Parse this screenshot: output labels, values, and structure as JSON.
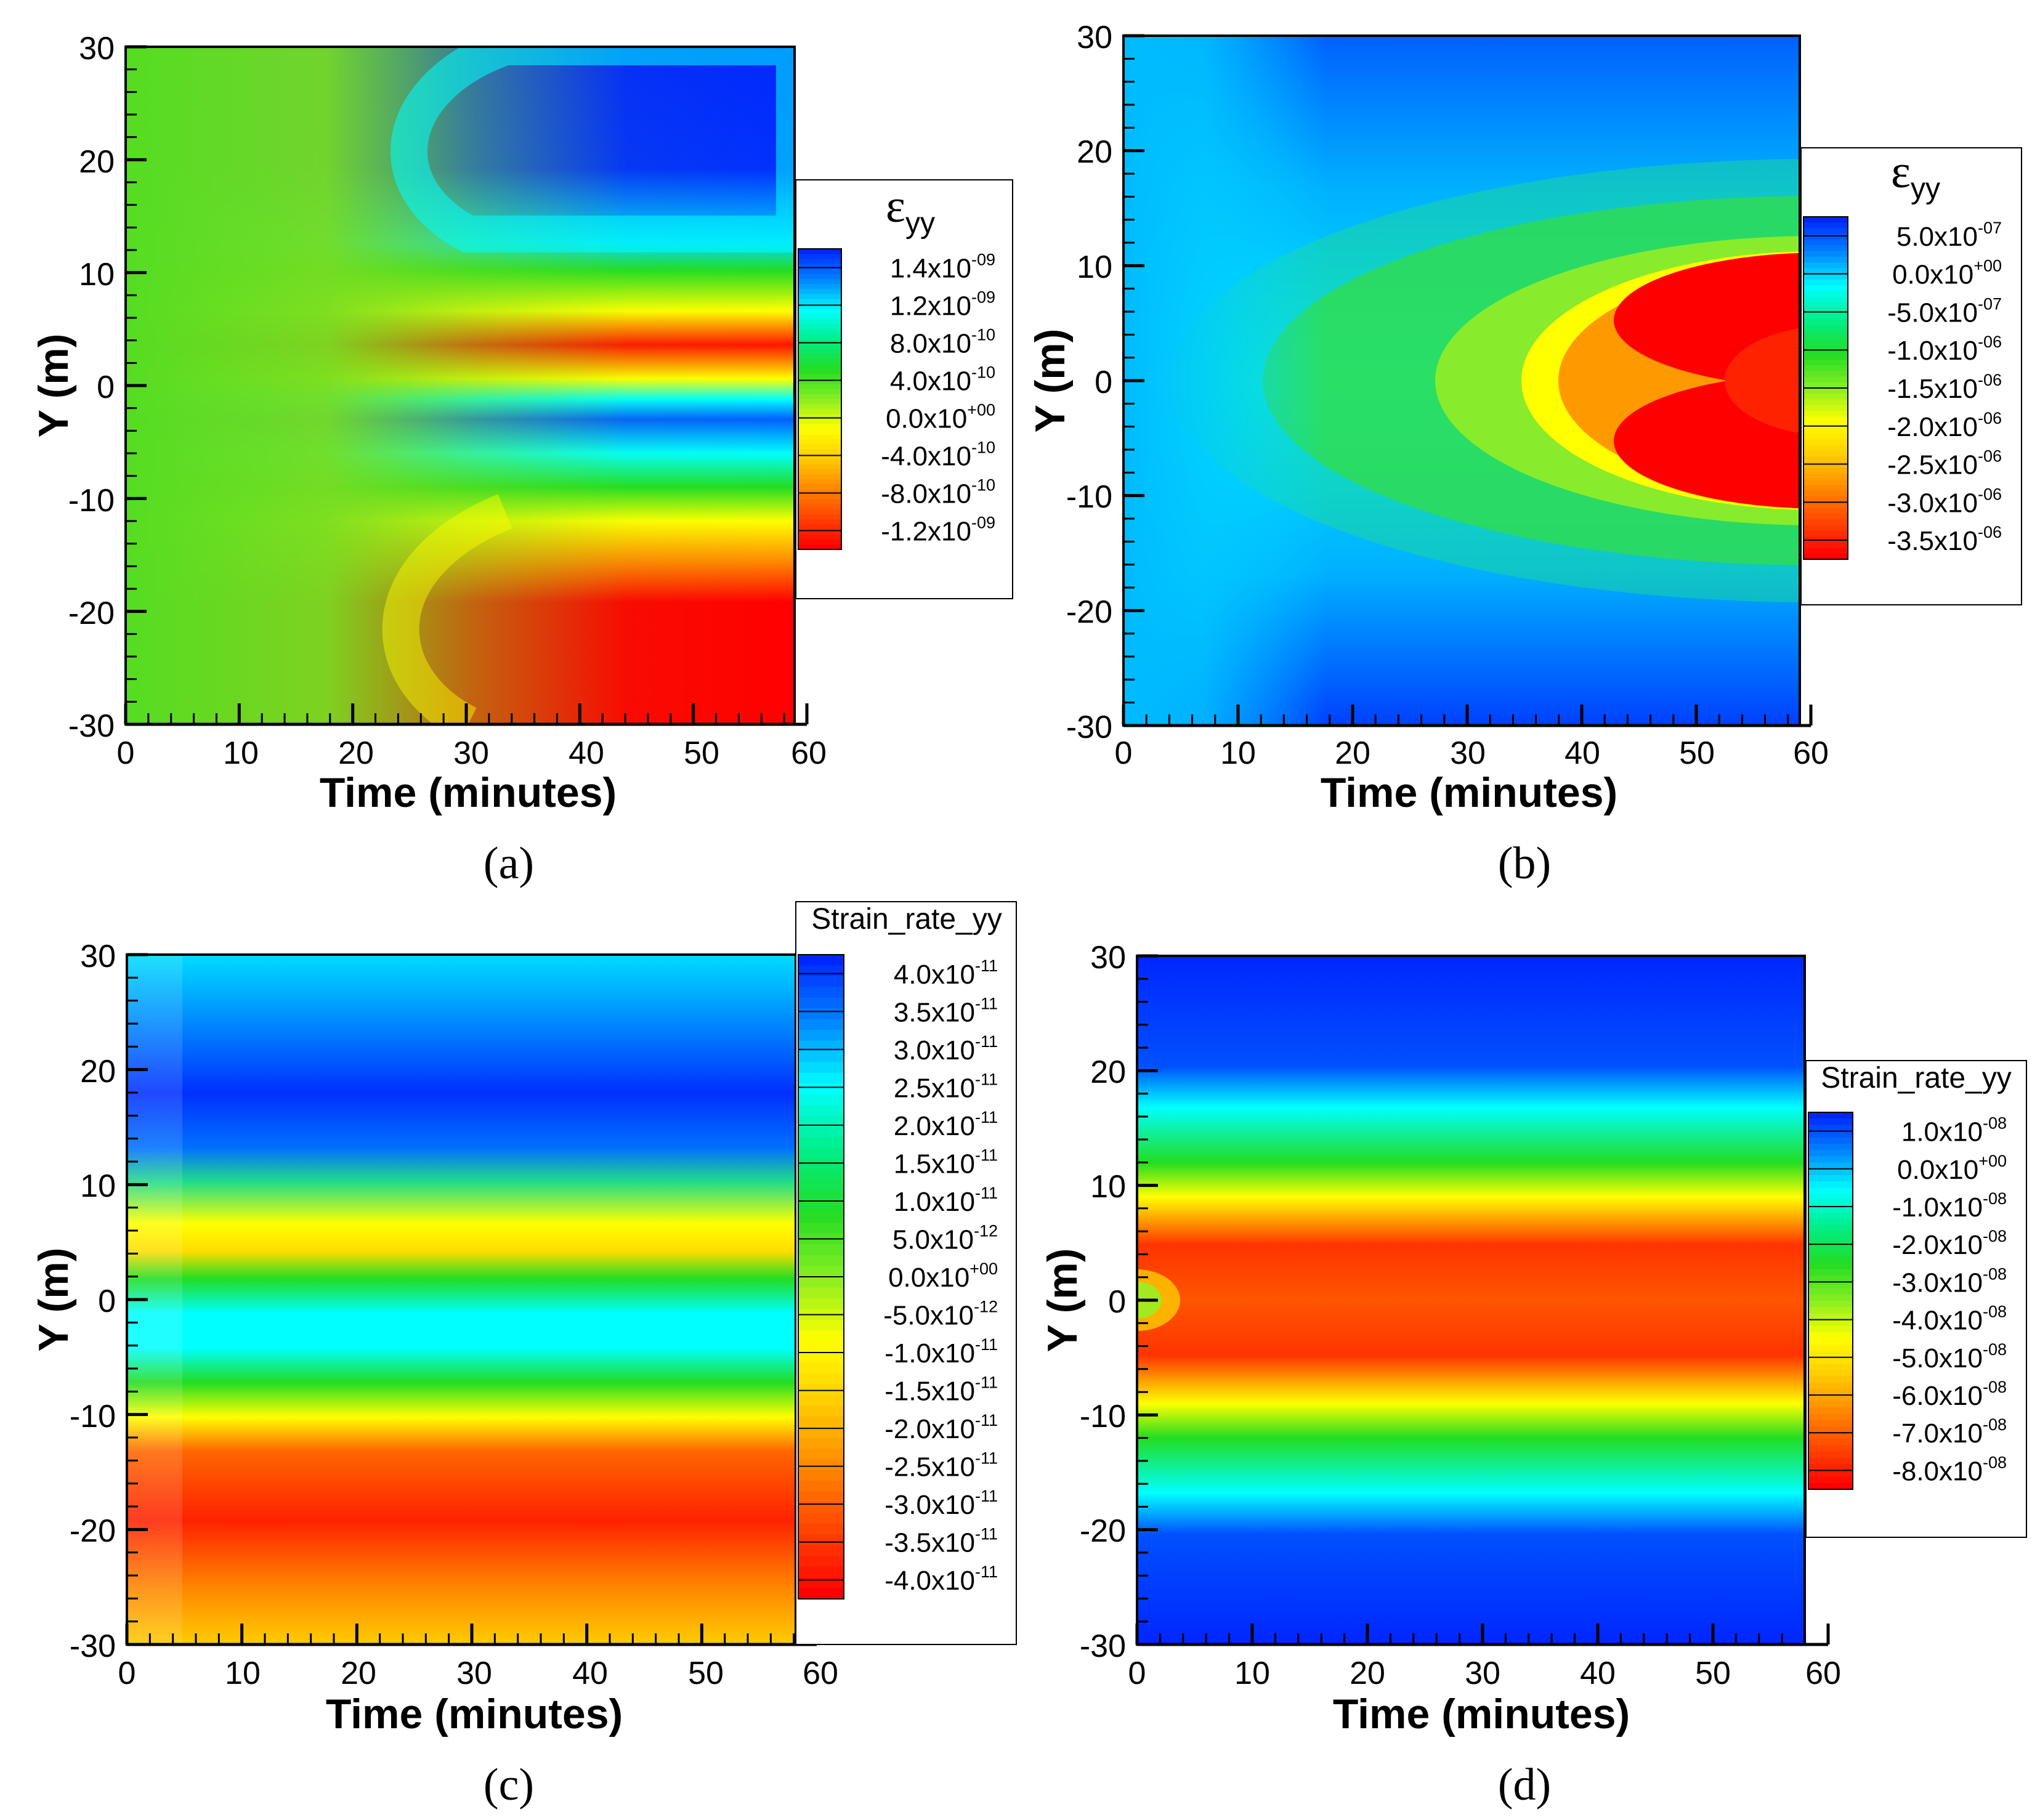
{
  "figure": {
    "panels": [
      "(a)",
      "(b)",
      "(c)",
      "(d)"
    ]
  },
  "colors": {
    "blue": "#0026ff",
    "cyan": "#00ffff",
    "green": "#22dd22",
    "yellow": "#ffff00",
    "orange": "#ff8800",
    "red": "#ff0000"
  },
  "chart_data": [
    {
      "type": "heatmap",
      "panel_label": "(a)",
      "xlabel": "Time (minutes)",
      "ylabel": "Y (m)",
      "xlim": [
        0,
        60
      ],
      "ylim": [
        -30,
        30
      ],
      "x_ticks": [
        0,
        10,
        20,
        30,
        40,
        50,
        60
      ],
      "y_ticks": [
        30,
        20,
        10,
        0,
        -10,
        -20,
        -30
      ],
      "data_extent_x": [
        0,
        59
      ],
      "colorbar": {
        "title": "εyy",
        "labels": [
          {
            "mantissa": "1.4x10",
            "exp": "-09"
          },
          {
            "mantissa": "1.2x10",
            "exp": "-09"
          },
          {
            "mantissa": "8.0x10",
            "exp": "-10"
          },
          {
            "mantissa": "4.0x10",
            "exp": "-10"
          },
          {
            "mantissa": "0.0x10",
            "exp": "+00"
          },
          {
            "mantissa": "-4.0x10",
            "exp": "-10"
          },
          {
            "mantissa": "-8.0x10",
            "exp": "-10"
          },
          {
            "mantissa": "-1.2x10",
            "exp": "-09"
          }
        ]
      }
    },
    {
      "type": "heatmap",
      "panel_label": "(b)",
      "xlabel": "Time (minutes)",
      "ylabel": "Y (m)",
      "xlim": [
        0,
        60
      ],
      "ylim": [
        -30,
        30
      ],
      "x_ticks": [
        0,
        10,
        20,
        30,
        40,
        50,
        60
      ],
      "y_ticks": [
        30,
        20,
        10,
        0,
        -10,
        -20,
        -30
      ],
      "data_extent_x": [
        0,
        59
      ],
      "colorbar": {
        "title": "εyy",
        "labels": [
          {
            "mantissa": "5.0x10",
            "exp": "-07"
          },
          {
            "mantissa": "0.0x10",
            "exp": "+00"
          },
          {
            "mantissa": "-5.0x10",
            "exp": "-07"
          },
          {
            "mantissa": "-1.0x10",
            "exp": "-06"
          },
          {
            "mantissa": "-1.5x10",
            "exp": "-06"
          },
          {
            "mantissa": "-2.0x10",
            "exp": "-06"
          },
          {
            "mantissa": "-2.5x10",
            "exp": "-06"
          },
          {
            "mantissa": "-3.0x10",
            "exp": "-06"
          },
          {
            "mantissa": "-3.5x10",
            "exp": "-06"
          }
        ]
      }
    },
    {
      "type": "heatmap",
      "panel_label": "(c)",
      "xlabel": "Time (minutes)",
      "ylabel": "Y (m)",
      "xlim": [
        0,
        60
      ],
      "ylim": [
        -30,
        30
      ],
      "x_ticks": [
        0,
        10,
        20,
        30,
        40,
        50,
        60
      ],
      "y_ticks": [
        30,
        20,
        10,
        0,
        -10,
        -20,
        -30
      ],
      "data_extent_x": [
        0,
        58.5
      ],
      "colorbar": {
        "title": "Strain_rate_yy",
        "labels": [
          {
            "mantissa": "4.0x10",
            "exp": "-11"
          },
          {
            "mantissa": "3.5x10",
            "exp": "-11"
          },
          {
            "mantissa": "3.0x10",
            "exp": "-11"
          },
          {
            "mantissa": "2.5x10",
            "exp": "-11"
          },
          {
            "mantissa": "2.0x10",
            "exp": "-11"
          },
          {
            "mantissa": "1.5x10",
            "exp": "-11"
          },
          {
            "mantissa": "1.0x10",
            "exp": "-11"
          },
          {
            "mantissa": "5.0x10",
            "exp": "-12"
          },
          {
            "mantissa": "0.0x10",
            "exp": "+00"
          },
          {
            "mantissa": "-5.0x10",
            "exp": "-12"
          },
          {
            "mantissa": "-1.0x10",
            "exp": "-11"
          },
          {
            "mantissa": "-1.5x10",
            "exp": "-11"
          },
          {
            "mantissa": "-2.0x10",
            "exp": "-11"
          },
          {
            "mantissa": "-2.5x10",
            "exp": "-11"
          },
          {
            "mantissa": "-3.0x10",
            "exp": "-11"
          },
          {
            "mantissa": "-3.5x10",
            "exp": "-11"
          },
          {
            "mantissa": "-4.0x10",
            "exp": "-11"
          }
        ]
      }
    },
    {
      "type": "heatmap",
      "panel_label": "(d)",
      "xlabel": "Time (minutes)",
      "ylabel": "Y (m)",
      "xlim": [
        0,
        60
      ],
      "ylim": [
        -30,
        30
      ],
      "x_ticks": [
        0,
        10,
        20,
        30,
        40,
        50,
        60
      ],
      "y_ticks": [
        30,
        20,
        10,
        0,
        -10,
        -20,
        -30
      ],
      "data_extent_x": [
        0,
        58.5
      ],
      "colorbar": {
        "title": "Strain_rate_yy",
        "labels": [
          {
            "mantissa": "1.0x10",
            "exp": "-08"
          },
          {
            "mantissa": "0.0x10",
            "exp": "+00"
          },
          {
            "mantissa": "-1.0x10",
            "exp": "-08"
          },
          {
            "mantissa": "-2.0x10",
            "exp": "-08"
          },
          {
            "mantissa": "-3.0x10",
            "exp": "-08"
          },
          {
            "mantissa": "-4.0x10",
            "exp": "-08"
          },
          {
            "mantissa": "-5.0x10",
            "exp": "-08"
          },
          {
            "mantissa": "-6.0x10",
            "exp": "-08"
          },
          {
            "mantissa": "-7.0x10",
            "exp": "-08"
          },
          {
            "mantissa": "-8.0x10",
            "exp": "-08"
          }
        ]
      }
    }
  ]
}
